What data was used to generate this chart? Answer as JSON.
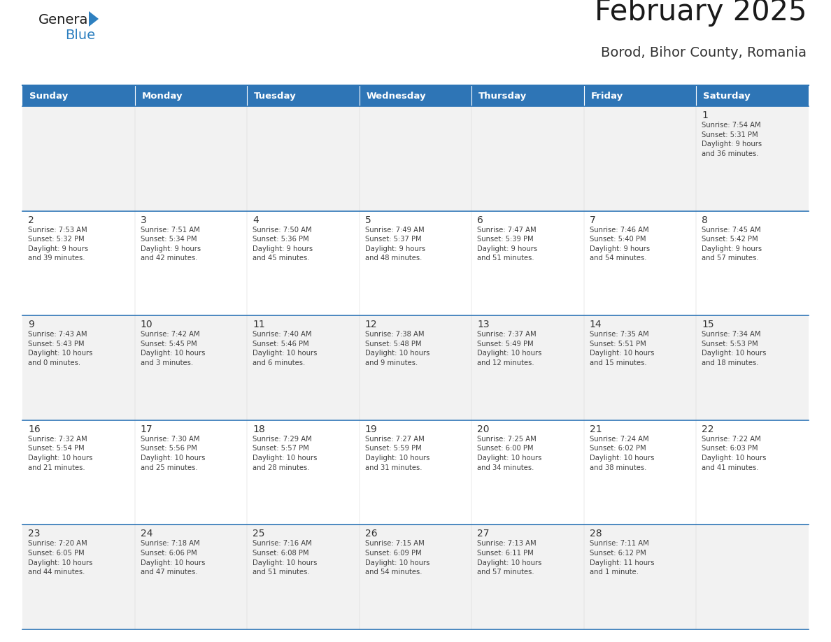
{
  "title": "February 2025",
  "subtitle": "Borod, Bihor County, Romania",
  "header_bg": "#2E75B6",
  "header_text": "#FFFFFF",
  "header_days": [
    "Sunday",
    "Monday",
    "Tuesday",
    "Wednesday",
    "Thursday",
    "Friday",
    "Saturday"
  ],
  "row_bg_odd": "#F2F2F2",
  "row_bg_even": "#FFFFFF",
  "cell_text_color": "#404040",
  "day_num_color": "#333333",
  "border_color": "#2E75B6",
  "logo_general_color": "#1a1a1a",
  "logo_blue_color": "#2E80C0",
  "title_color": "#1a1a1a",
  "subtitle_color": "#333333",
  "weeks": [
    [
      {
        "day": null,
        "info": null
      },
      {
        "day": null,
        "info": null
      },
      {
        "day": null,
        "info": null
      },
      {
        "day": null,
        "info": null
      },
      {
        "day": null,
        "info": null
      },
      {
        "day": null,
        "info": null
      },
      {
        "day": 1,
        "info": "Sunrise: 7:54 AM\nSunset: 5:31 PM\nDaylight: 9 hours\nand 36 minutes."
      }
    ],
    [
      {
        "day": 2,
        "info": "Sunrise: 7:53 AM\nSunset: 5:32 PM\nDaylight: 9 hours\nand 39 minutes."
      },
      {
        "day": 3,
        "info": "Sunrise: 7:51 AM\nSunset: 5:34 PM\nDaylight: 9 hours\nand 42 minutes."
      },
      {
        "day": 4,
        "info": "Sunrise: 7:50 AM\nSunset: 5:36 PM\nDaylight: 9 hours\nand 45 minutes."
      },
      {
        "day": 5,
        "info": "Sunrise: 7:49 AM\nSunset: 5:37 PM\nDaylight: 9 hours\nand 48 minutes."
      },
      {
        "day": 6,
        "info": "Sunrise: 7:47 AM\nSunset: 5:39 PM\nDaylight: 9 hours\nand 51 minutes."
      },
      {
        "day": 7,
        "info": "Sunrise: 7:46 AM\nSunset: 5:40 PM\nDaylight: 9 hours\nand 54 minutes."
      },
      {
        "day": 8,
        "info": "Sunrise: 7:45 AM\nSunset: 5:42 PM\nDaylight: 9 hours\nand 57 minutes."
      }
    ],
    [
      {
        "day": 9,
        "info": "Sunrise: 7:43 AM\nSunset: 5:43 PM\nDaylight: 10 hours\nand 0 minutes."
      },
      {
        "day": 10,
        "info": "Sunrise: 7:42 AM\nSunset: 5:45 PM\nDaylight: 10 hours\nand 3 minutes."
      },
      {
        "day": 11,
        "info": "Sunrise: 7:40 AM\nSunset: 5:46 PM\nDaylight: 10 hours\nand 6 minutes."
      },
      {
        "day": 12,
        "info": "Sunrise: 7:38 AM\nSunset: 5:48 PM\nDaylight: 10 hours\nand 9 minutes."
      },
      {
        "day": 13,
        "info": "Sunrise: 7:37 AM\nSunset: 5:49 PM\nDaylight: 10 hours\nand 12 minutes."
      },
      {
        "day": 14,
        "info": "Sunrise: 7:35 AM\nSunset: 5:51 PM\nDaylight: 10 hours\nand 15 minutes."
      },
      {
        "day": 15,
        "info": "Sunrise: 7:34 AM\nSunset: 5:53 PM\nDaylight: 10 hours\nand 18 minutes."
      }
    ],
    [
      {
        "day": 16,
        "info": "Sunrise: 7:32 AM\nSunset: 5:54 PM\nDaylight: 10 hours\nand 21 minutes."
      },
      {
        "day": 17,
        "info": "Sunrise: 7:30 AM\nSunset: 5:56 PM\nDaylight: 10 hours\nand 25 minutes."
      },
      {
        "day": 18,
        "info": "Sunrise: 7:29 AM\nSunset: 5:57 PM\nDaylight: 10 hours\nand 28 minutes."
      },
      {
        "day": 19,
        "info": "Sunrise: 7:27 AM\nSunset: 5:59 PM\nDaylight: 10 hours\nand 31 minutes."
      },
      {
        "day": 20,
        "info": "Sunrise: 7:25 AM\nSunset: 6:00 PM\nDaylight: 10 hours\nand 34 minutes."
      },
      {
        "day": 21,
        "info": "Sunrise: 7:24 AM\nSunset: 6:02 PM\nDaylight: 10 hours\nand 38 minutes."
      },
      {
        "day": 22,
        "info": "Sunrise: 7:22 AM\nSunset: 6:03 PM\nDaylight: 10 hours\nand 41 minutes."
      }
    ],
    [
      {
        "day": 23,
        "info": "Sunrise: 7:20 AM\nSunset: 6:05 PM\nDaylight: 10 hours\nand 44 minutes."
      },
      {
        "day": 24,
        "info": "Sunrise: 7:18 AM\nSunset: 6:06 PM\nDaylight: 10 hours\nand 47 minutes."
      },
      {
        "day": 25,
        "info": "Sunrise: 7:16 AM\nSunset: 6:08 PM\nDaylight: 10 hours\nand 51 minutes."
      },
      {
        "day": 26,
        "info": "Sunrise: 7:15 AM\nSunset: 6:09 PM\nDaylight: 10 hours\nand 54 minutes."
      },
      {
        "day": 27,
        "info": "Sunrise: 7:13 AM\nSunset: 6:11 PM\nDaylight: 10 hours\nand 57 minutes."
      },
      {
        "day": 28,
        "info": "Sunrise: 7:11 AM\nSunset: 6:12 PM\nDaylight: 11 hours\nand 1 minute."
      },
      {
        "day": null,
        "info": null
      }
    ]
  ],
  "fig_width": 11.88,
  "fig_height": 9.18,
  "dpi": 100
}
